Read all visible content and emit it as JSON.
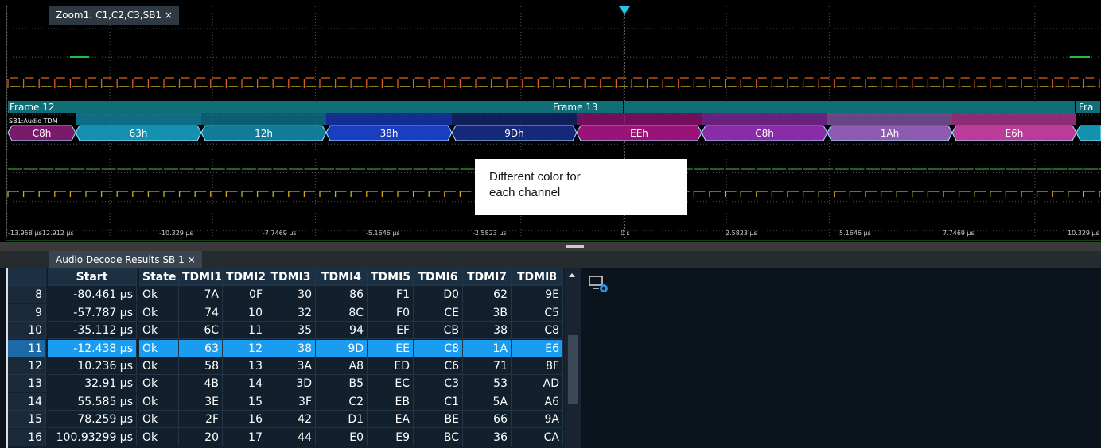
{
  "zoom_tab": {
    "title": "Zoom1: C1,C2,C3,SB1",
    "close": "×"
  },
  "waveform": {
    "frames": [
      "Frame 12",
      "Frame 13",
      "Fra"
    ],
    "bus_label": "SB1:Audio TDM",
    "segments": [
      {
        "label": "C8h",
        "color": "#7a1a6a"
      },
      {
        "label": "63h",
        "color": "#1490b0"
      },
      {
        "label": "12h",
        "color": "#127c98"
      },
      {
        "label": "38h",
        "color": "#1a3ec0"
      },
      {
        "label": "9Dh",
        "color": "#16287a"
      },
      {
        "label": "EEh",
        "color": "#9a1478"
      },
      {
        "label": "C8h",
        "color": "#8a2ca8"
      },
      {
        "label": "1Ah",
        "color": "#8d5cb0"
      },
      {
        "label": "E6h",
        "color": "#b83c98"
      }
    ],
    "time_labels": [
      "-13.958 µs",
      "-12.912 µs",
      "-10.329 µs",
      "-7.7469 µs",
      "-5.1646 µs",
      "-2.5823 µs",
      "0 s",
      "2.5823 µs",
      "5.1646 µs",
      "7.7469 µs",
      "10.329 µs"
    ],
    "callout": [
      "Different color for",
      "each channel"
    ]
  },
  "results_tab": {
    "title": "Audio Decode Results SB 1",
    "close": "×"
  },
  "table": {
    "columns": [
      "Start",
      "State",
      "TDMI1",
      "TDMI2",
      "TDMI3",
      "TDMI4",
      "TDMI5",
      "TDMI6",
      "TDMI7",
      "TDMI8"
    ],
    "rows": [
      [
        8,
        "-80.461 µs",
        "Ok",
        "7A",
        "0F",
        "30",
        "86",
        "F1",
        "D0",
        "62",
        "9E"
      ],
      [
        9,
        "-57.787 µs",
        "Ok",
        "74",
        "10",
        "32",
        "8C",
        "F0",
        "CE",
        "3B",
        "C5"
      ],
      [
        10,
        "-35.112 µs",
        "Ok",
        "6C",
        "11",
        "35",
        "94",
        "EF",
        "CB",
        "38",
        "C8"
      ],
      [
        11,
        "-12.438 µs",
        "Ok",
        "63",
        "12",
        "38",
        "9D",
        "EE",
        "C8",
        "1A",
        "E6"
      ],
      [
        12,
        "10.236 µs",
        "Ok",
        "58",
        "13",
        "3A",
        "A8",
        "ED",
        "C6",
        "71",
        "8F"
      ],
      [
        13,
        "32.91 µs",
        "Ok",
        "4B",
        "14",
        "3D",
        "B5",
        "EC",
        "C3",
        "53",
        "AD"
      ],
      [
        14,
        "55.585 µs",
        "Ok",
        "3E",
        "15",
        "3F",
        "C2",
        "EB",
        "C1",
        "5A",
        "A6"
      ],
      [
        15,
        "78.259 µs",
        "Ok",
        "2F",
        "16",
        "42",
        "D1",
        "EA",
        "BE",
        "66",
        "9A"
      ],
      [
        16,
        "100.93299 µs",
        "Ok",
        "20",
        "17",
        "44",
        "E0",
        "E9",
        "BC",
        "36",
        "CA"
      ]
    ],
    "selected_row": 3
  }
}
